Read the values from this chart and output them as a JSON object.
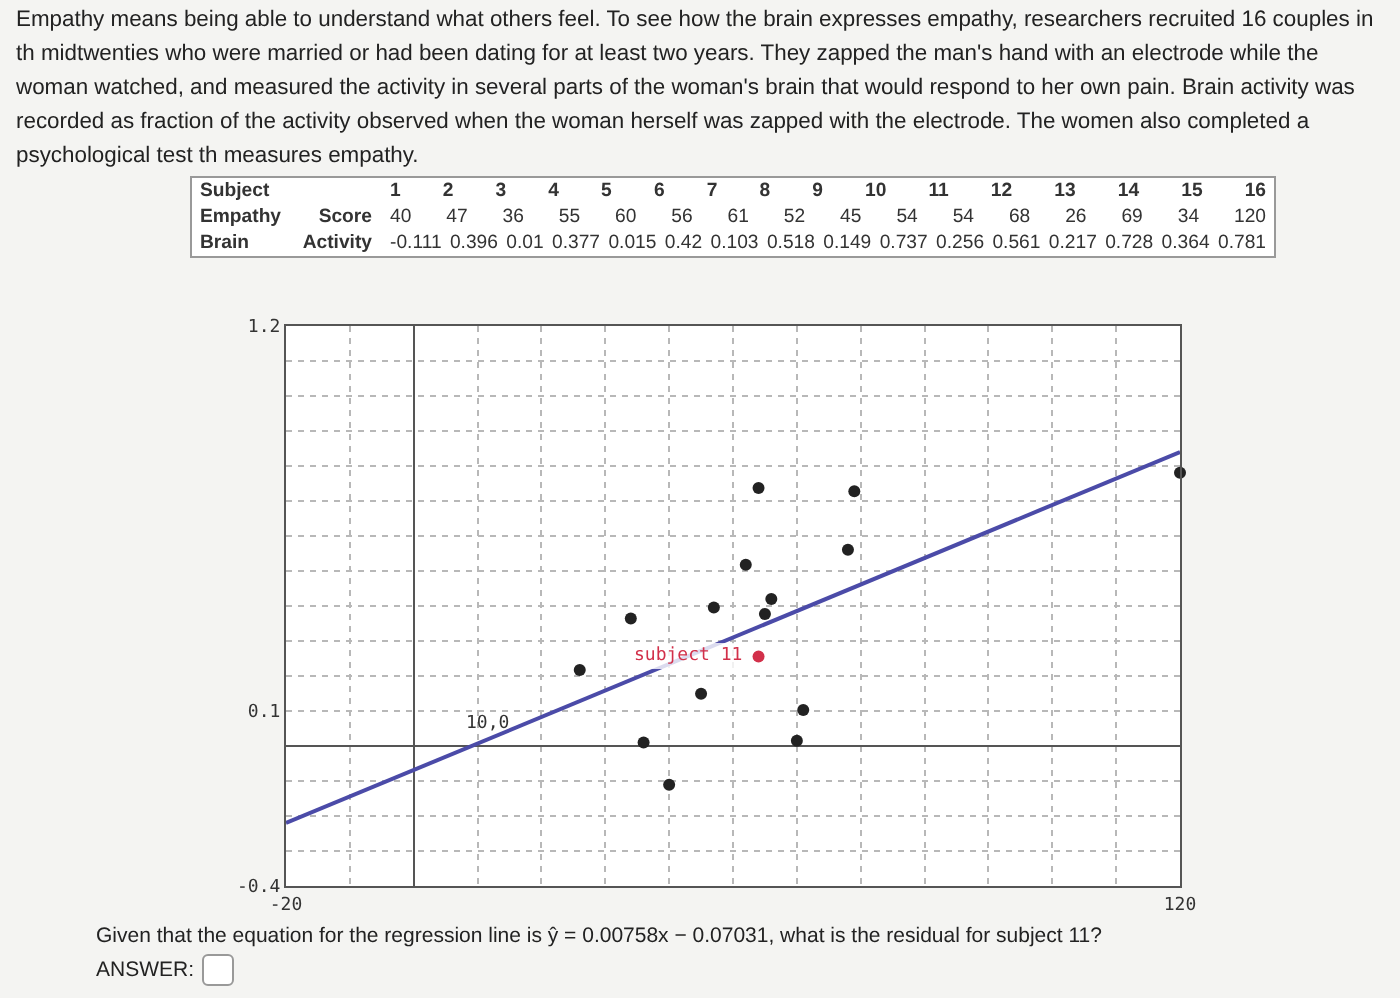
{
  "chart_data": [
    {
      "type": "other",
      "title": "Empathy means being able to understand what others feel. To see how the brain expresses empathy, researchers recruited 16 couples in th midtwenties who were married or had been dating for at least two years. They zapped the man's hand with an electrode while the woman watched, and measured the activity in several parts of the woman's brain that would respond to her own pain. Brain activity was recorded as fraction of the activity observed when the woman herself was zapped with the electrode. The women also completed a psychological test th measures empathy.",
      "annotations": [
        "Subject",
        "1 2 3 4 5 6 7 8 9 10 11 12 13 14 15 16",
        "Empathy Score",
        "40 47 36 55 60 56 61 52 45 54 54 68 26 69 34 120",
        "Brain Activity",
        "-0.111 0.396 0.01 0.377 0.015 0.42 0.103 0.518 0.149 0.737 0.256 0.561 0.217 0.728 0.364 0.781"
      ]
    },
    {
      "type": "scatter",
      "grid": true,
      "xlim": [
        -20,
        120
      ],
      "ylim": [
        -0.4,
        1.2
      ],
      "xticks": [
        -20,
        {
          "value": -10,
          "label": null
        },
        {
          "value": 0,
          "label": null
        },
        {
          "value": 10,
          "label": null
        },
        {
          "value": 20,
          "label": null
        },
        {
          "value": 30,
          "label": null
        },
        {
          "value": 40,
          "label": null
        },
        {
          "value": 50,
          "label": null
        },
        {
          "value": 60,
          "label": null
        },
        {
          "value": 70,
          "label": null
        },
        {
          "value": 80,
          "label": null
        },
        {
          "value": 90,
          "label": null
        },
        {
          "value": 100,
          "label": null
        },
        {
          "value": 110,
          "label": null
        },
        120
      ],
      "yticks": [
        -0.4,
        {
          "value": -0.3,
          "label": null
        },
        {
          "value": -0.2,
          "label": null
        },
        {
          "value": -0.1,
          "label": null
        },
        {
          "value": 0,
          "label": null
        },
        0.1,
        {
          "value": 0.2,
          "label": null
        },
        {
          "value": 0.3,
          "label": null
        },
        {
          "value": 0.4,
          "label": null
        },
        {
          "value": 0.5,
          "label": null
        },
        {
          "value": 0.6,
          "label": null
        },
        {
          "value": 0.7,
          "label": null
        },
        {
          "value": 0.8,
          "label": null
        },
        {
          "value": 0.9,
          "label": null
        },
        {
          "value": 1,
          "label": null
        },
        {
          "value": 1.1,
          "label": null
        },
        1.2
      ],
      "series": [
        {
          "type": "scatter",
          "marker": "circle",
          "x": [
            40,
            47,
            36,
            55,
            60,
            56,
            61,
            52,
            45,
            54,
            54,
            68,
            26,
            69,
            34,
            120
          ],
          "values": [
            -0.111,
            0.396,
            0.01,
            0.377,
            0.015,
            0.42,
            0.103,
            0.518,
            0.149,
            0.737,
            0.256,
            0.561,
            0.217,
            0.728,
            0.364,
            0.781
          ],
          "colors": [
            "#222222",
            "#222222",
            "#222222",
            "#222222",
            "#222222",
            "#222222",
            "#222222",
            "#222222",
            "#222222",
            "#222222",
            "#d2304a",
            "#222222",
            "#222222",
            "#222222",
            "#222222",
            "#222222"
          ]
        },
        {
          "type": "line",
          "marker": "none",
          "color": "#4b4ba8",
          "line_style": "solid",
          "x": [
            -20,
            120
          ],
          "values": [
            -0.22,
            0.84
          ]
        }
      ],
      "annotations": [
        {
          "text": "subject 11",
          "x": 54,
          "y": 0.256
        },
        {
          "text": "10,0",
          "x": 10,
          "y": 0
        },
        "Given that the equation for the regression line is ŷ = 0.00758x − 0.07031, what is the residual for subject 11?",
        "ANSWER:"
      ]
    }
  ]
}
